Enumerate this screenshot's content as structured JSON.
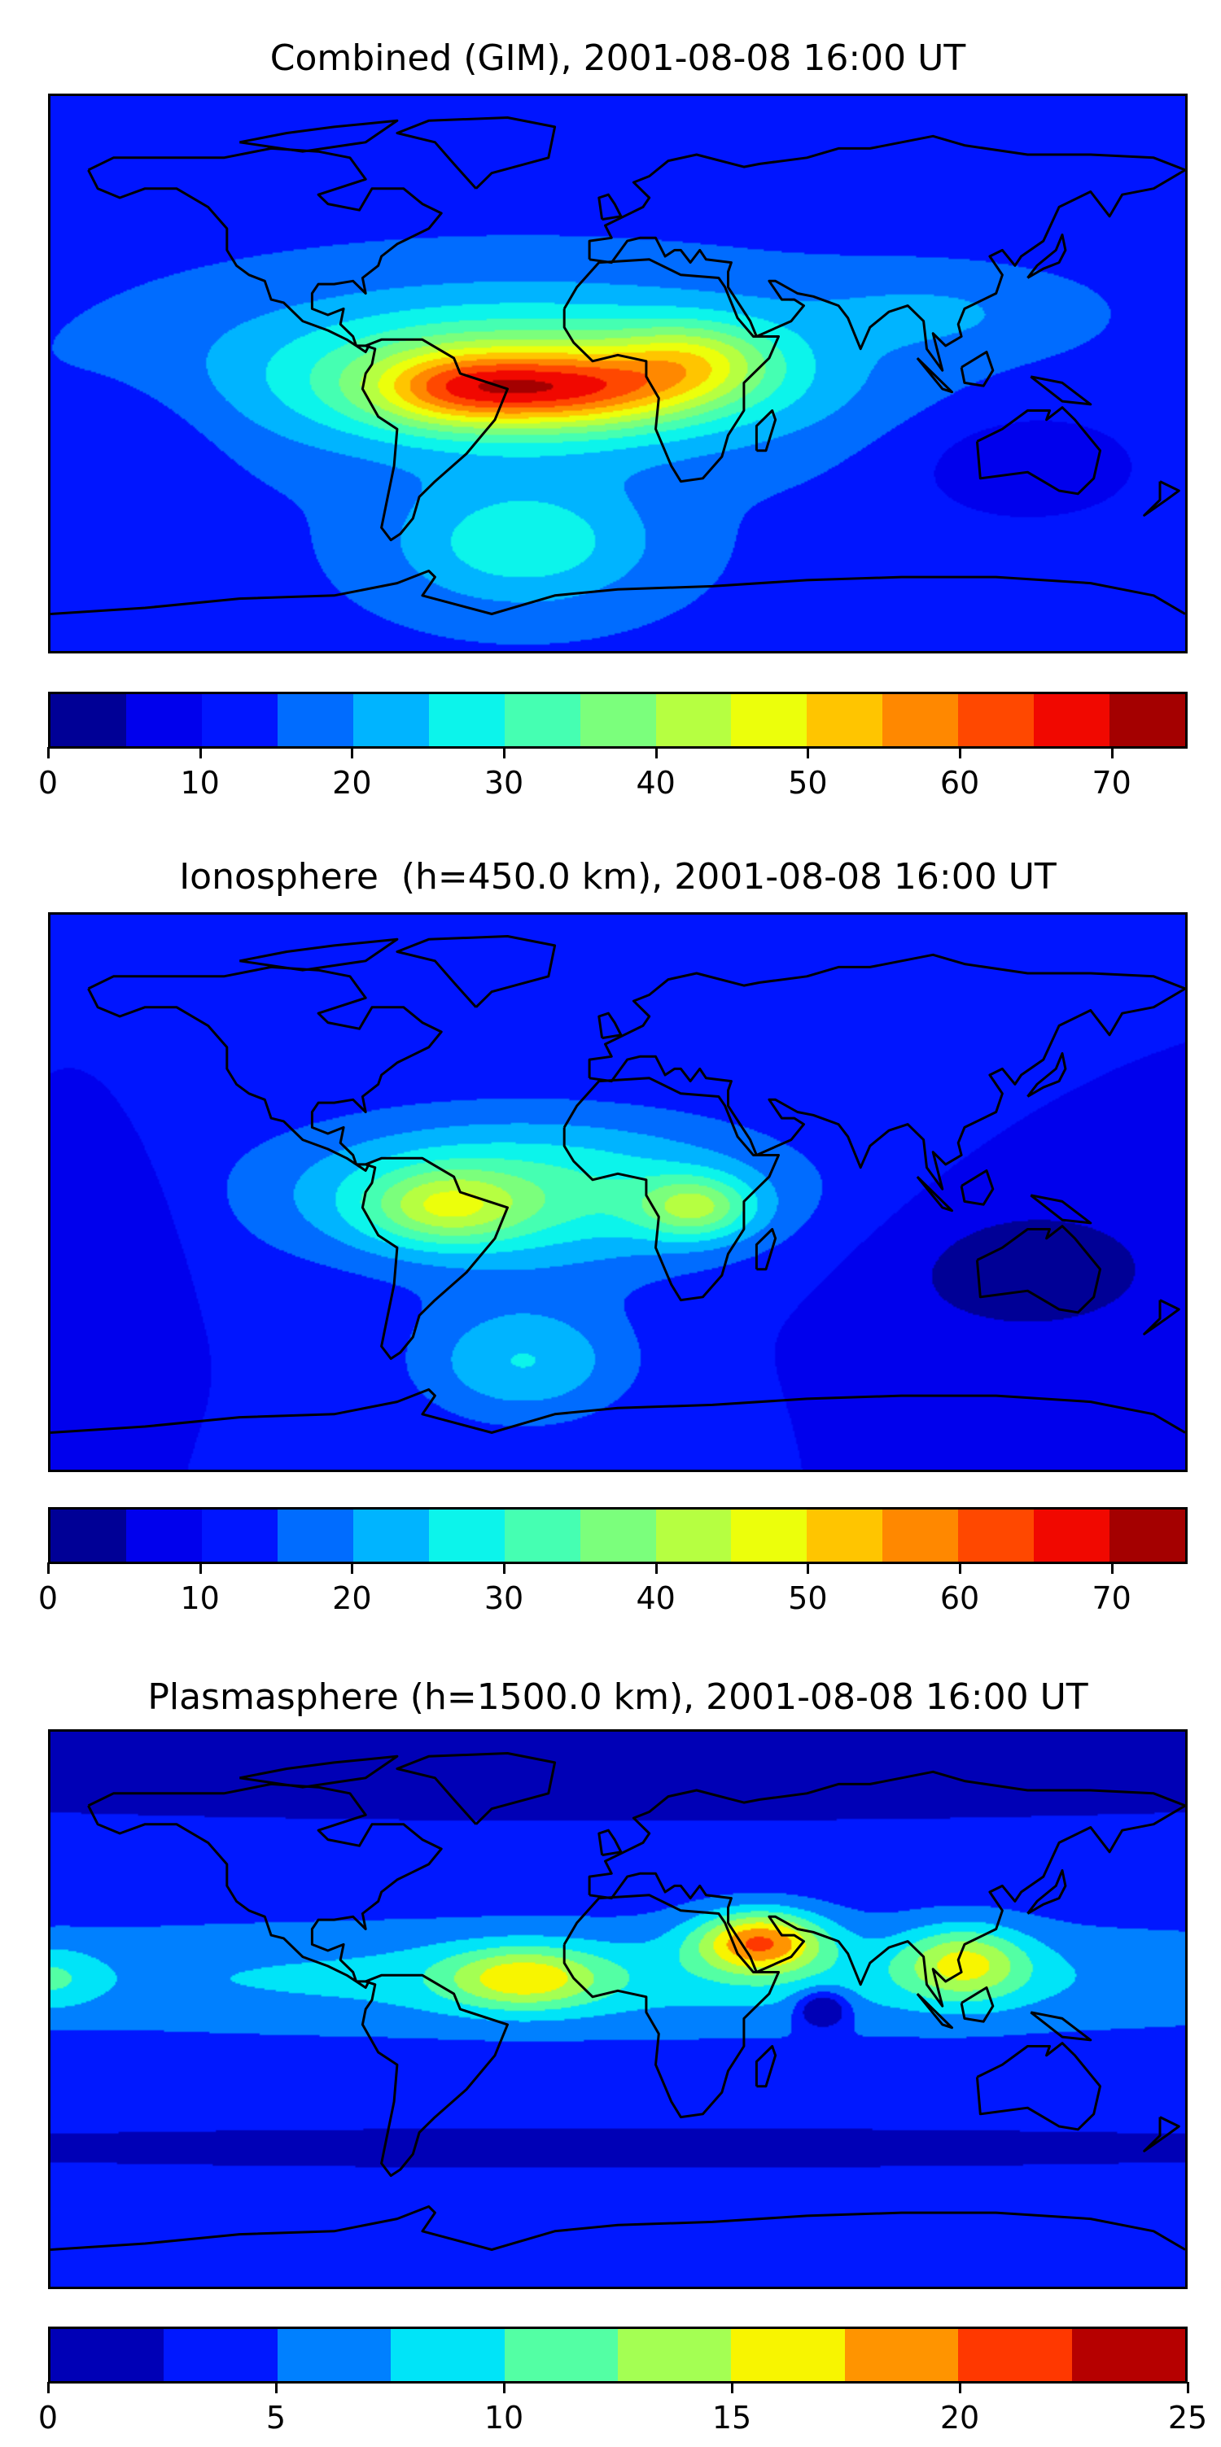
{
  "chart_data": [
    {
      "type": "heatmap",
      "title": "Combined (GIM), 2001-08-08 16:00 UT",
      "projection": "equirectangular world map with coastlines",
      "xlim": [
        -180,
        180
      ],
      "ylim": [
        -90,
        90
      ],
      "colorbar": {
        "levels": [
          0,
          5,
          10,
          15,
          20,
          25,
          30,
          35,
          40,
          45,
          50,
          55,
          60,
          65,
          70,
          75
        ],
        "ticks": [
          "0",
          "10",
          "20",
          "30",
          "40",
          "50",
          "60",
          "70"
        ],
        "tick_values": [
          0,
          10,
          20,
          30,
          40,
          50,
          60,
          70
        ],
        "colors": [
          "#000096",
          "#0000ed",
          "#0015ff",
          "#006cff",
          "#00b4ff",
          "#0cf4eb",
          "#45ffb2",
          "#7bff7c",
          "#b6ff41",
          "#ecff0b",
          "#ffc500",
          "#ff8800",
          "#ff4800",
          "#f10800",
          "#a40000"
        ]
      },
      "field_approx": {
        "base": 14,
        "features": [
          {
            "lon": -30,
            "lat": 0,
            "value": 25,
            "slon": 90,
            "slat": 25
          },
          {
            "lon": -20,
            "lat": -5,
            "value": 30,
            "slon": 45,
            "slat": 12
          },
          {
            "lon": -55,
            "lat": -5,
            "value": 12,
            "slon": 25,
            "slat": 12
          },
          {
            "lon": 25,
            "lat": 5,
            "value": 15,
            "slon": 25,
            "slat": 12
          },
          {
            "lon": -30,
            "lat": -55,
            "value": 15,
            "slon": 40,
            "slat": 20
          },
          {
            "lon": 100,
            "lat": 20,
            "value": 6,
            "slon": 40,
            "slat": 12
          },
          {
            "lon": 130,
            "lat": -30,
            "value": -8,
            "slon": 40,
            "slat": 20
          },
          {
            "lon": -150,
            "lat": -20,
            "value": -4,
            "slon": 30,
            "slat": 25
          }
        ]
      }
    },
    {
      "type": "heatmap",
      "title": "Ionosphere  (h=450.0 km), 2001-08-08 16:00 UT",
      "projection": "equirectangular world map with coastlines",
      "xlim": [
        -180,
        180
      ],
      "ylim": [
        -90,
        90
      ],
      "colorbar": {
        "levels": [
          0,
          5,
          10,
          15,
          20,
          25,
          30,
          35,
          40,
          45,
          50,
          55,
          60,
          65,
          70,
          75
        ],
        "ticks": [
          "0",
          "10",
          "20",
          "30",
          "40",
          "50",
          "60",
          "70"
        ],
        "tick_values": [
          0,
          10,
          20,
          30,
          40,
          50,
          60,
          70
        ],
        "colors": [
          "#000096",
          "#0000ed",
          "#0015ff",
          "#006cff",
          "#00b4ff",
          "#0cf4eb",
          "#45ffb2",
          "#7bff7c",
          "#b6ff41",
          "#ecff0b",
          "#ffc500",
          "#ff8800",
          "#ff4800",
          "#f10800",
          "#a40000"
        ]
      },
      "field_approx": {
        "base": 10,
        "features": [
          {
            "lon": -30,
            "lat": 0,
            "value": 22,
            "slon": 80,
            "slat": 25
          },
          {
            "lon": -55,
            "lat": -5,
            "value": 18,
            "slon": 25,
            "slat": 12
          },
          {
            "lon": 25,
            "lat": -5,
            "value": 20,
            "slon": 18,
            "slat": 10
          },
          {
            "lon": -30,
            "lat": -55,
            "value": 15,
            "slon": 35,
            "slat": 20
          },
          {
            "lon": 130,
            "lat": -25,
            "value": -8,
            "slon": 50,
            "slat": 25
          },
          {
            "lon": -160,
            "lat": -10,
            "value": -5,
            "slon": 25,
            "slat": 25
          }
        ]
      }
    },
    {
      "type": "heatmap",
      "title": "Plasmasphere (h=1500.0 km), 2001-08-08 16:00 UT",
      "projection": "equirectangular world map with coastlines",
      "xlim": [
        -180,
        180
      ],
      "ylim": [
        -90,
        90
      ],
      "colorbar": {
        "levels": [
          0,
          2.5,
          5,
          7.5,
          10,
          12.5,
          15,
          17.5,
          20,
          22.5,
          25
        ],
        "ticks": [
          "0",
          "5",
          "10",
          "15",
          "20",
          "25"
        ],
        "tick_values": [
          0,
          5,
          10,
          15,
          20,
          25
        ],
        "colors": [
          "#0000b6",
          "#0018ff",
          "#0080ff",
          "#00e4f8",
          "#53ffa4",
          "#a4ff53",
          "#f8f500",
          "#ff9400",
          "#ff3800",
          "#b60000"
        ]
      },
      "field_approx": {
        "base": 3.5,
        "features": [
          {
            "lon": 0,
            "lat": 10,
            "value": 5,
            "slon": 260,
            "slat": 18
          },
          {
            "lon": -30,
            "lat": 10,
            "value": 9,
            "slon": 25,
            "slat": 10
          },
          {
            "lon": -180,
            "lat": 10,
            "value": 4,
            "slon": 15,
            "slat": 10
          },
          {
            "lon": 45,
            "lat": 22,
            "value": 14,
            "slon": 20,
            "slat": 10
          },
          {
            "lon": 110,
            "lat": 15,
            "value": 9,
            "slon": 20,
            "slat": 12
          },
          {
            "lon": 65,
            "lat": 0,
            "value": -8,
            "slon": 8,
            "slat": 6
          },
          {
            "lon": 0,
            "lat": 85,
            "value": -2.5,
            "slon": 400,
            "slat": 25
          },
          {
            "lon": 0,
            "lat": -45,
            "value": -1.5,
            "slon": 400,
            "slat": 10
          }
        ]
      }
    }
  ]
}
